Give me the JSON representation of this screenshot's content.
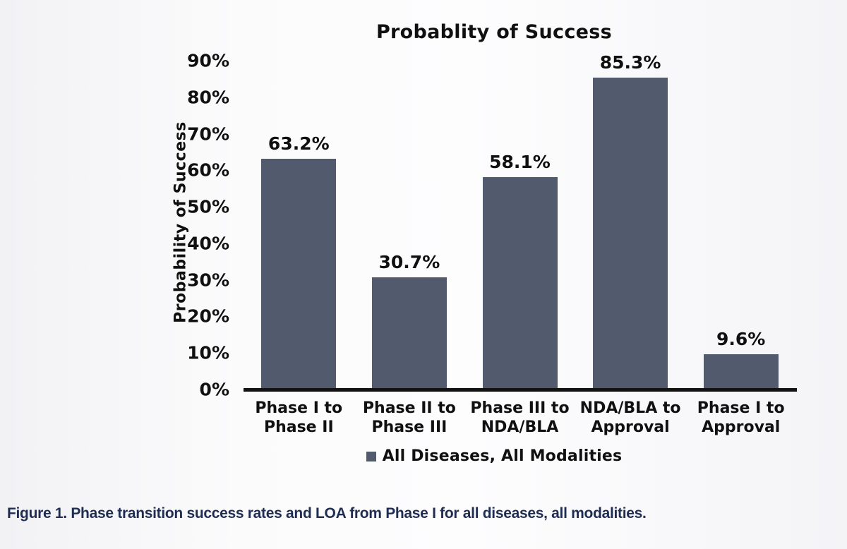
{
  "chart_data": {
    "type": "bar",
    "title": "Probablity of Success",
    "xlabel": "",
    "ylabel": "Probability of Success",
    "categories": [
      "Phase I to\nPhase II",
      "Phase II to\nPhase III",
      "Phase III to\nNDA/BLA",
      "NDA/BLA to\nApproval",
      "Phase I to\nApproval"
    ],
    "values": [
      63.2,
      30.7,
      58.1,
      85.3,
      9.6
    ],
    "value_labels": [
      "63.2%",
      "30.7%",
      "58.1%",
      "85.3%",
      "9.6%"
    ],
    "ylim": [
      0,
      90
    ],
    "ytick_step": 10,
    "yticks": [
      "0%",
      "10%",
      "20%",
      "30%",
      "40%",
      "50%",
      "60%",
      "70%",
      "80%",
      "90%"
    ],
    "grid": false,
    "bar_color": "#515b6d",
    "axis_color": "#121212",
    "legend": {
      "position": "bottom",
      "entries": [
        {
          "label": "All Diseases, All Modalities",
          "color": "#515b6d"
        }
      ]
    }
  },
  "caption": {
    "text": "Figure 1. Phase transition success rates and LOA from Phase I for all diseases, all modalities.",
    "color": "#1f2d52"
  }
}
